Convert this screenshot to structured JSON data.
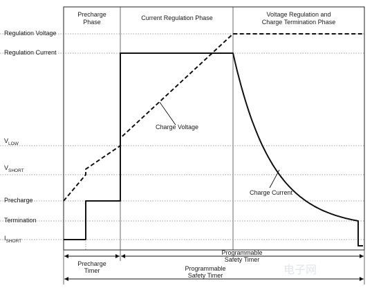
{
  "chart_data": {
    "type": "line",
    "phases": [
      {
        "key": "precharge",
        "lines": [
          "Precharge",
          "Phase"
        ]
      },
      {
        "key": "current",
        "lines": [
          "Current Regulation Phase"
        ]
      },
      {
        "key": "voltage",
        "lines": [
          "Voltage Regulation and",
          "Charge Termination Phase"
        ]
      }
    ],
    "y_levels": [
      {
        "key": "reg_voltage",
        "text": "Regulation Voltage",
        "sub": ""
      },
      {
        "key": "reg_current",
        "text": "Regulation Current",
        "sub": ""
      },
      {
        "key": "vlow",
        "text": "V",
        "sub": "LOW"
      },
      {
        "key": "vshort",
        "text": "V",
        "sub": "SHORT"
      },
      {
        "key": "precharge",
        "text": "Precharge",
        "sub": ""
      },
      {
        "key": "termination",
        "text": "Termination",
        "sub": ""
      },
      {
        "key": "ishort",
        "text": "I",
        "sub": "SHORT"
      }
    ],
    "series": [
      {
        "name": "Charge Voltage",
        "style": "dashed",
        "color": "#111111"
      },
      {
        "name": "Charge Current",
        "style": "solid",
        "color": "#111111"
      }
    ],
    "timers": [
      {
        "key": "precharge_timer",
        "lines": [
          "Precharge",
          "Timer"
        ]
      },
      {
        "key": "safety_timer_1",
        "lines": [
          "Programmable",
          "Safety Timer"
        ]
      },
      {
        "key": "safety_timer_2",
        "lines": [
          "Programmable",
          "Safety Timer"
        ]
      }
    ],
    "watermark": "电子网",
    "grid": true
  }
}
